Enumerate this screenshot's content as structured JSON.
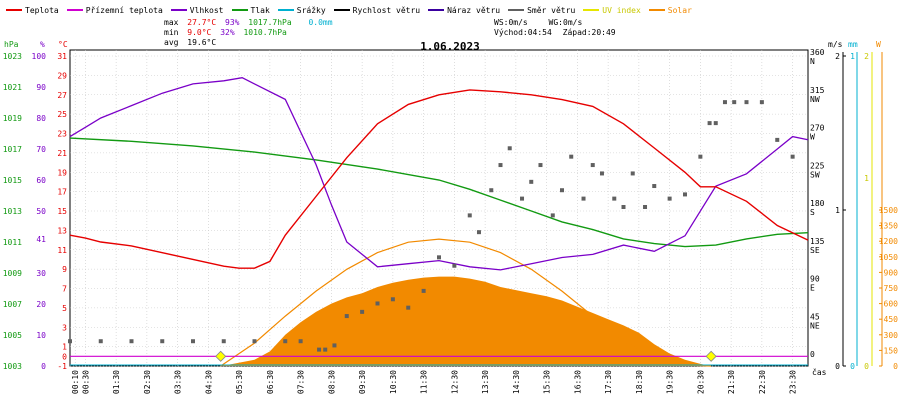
{
  "legend": [
    {
      "label": "Teplota",
      "color": "#e60000"
    },
    {
      "label": "Přízemní teplota",
      "color": "#d000d0"
    },
    {
      "label": "Vlhkost",
      "color": "#7a00c8"
    },
    {
      "label": "Tlak",
      "color": "#129a12"
    },
    {
      "label": "Srážky",
      "color": "#00b0d0"
    },
    {
      "label": "Rychlost větru",
      "color": "#000000"
    },
    {
      "label": "Náraz větru",
      "color": "#3a00a0"
    },
    {
      "label": "Směr větru",
      "color": "#606060"
    },
    {
      "label": "UV index",
      "color": "#e6e600"
    },
    {
      "label": "Solar",
      "color": "#f28a00"
    }
  ],
  "stats": {
    "max_label": "max",
    "max_temp": "27.7°C",
    "max_hum": "93%",
    "max_press": "1017.7hPa",
    "max_rain": "0.0mm",
    "min_label": "min",
    "min_temp": "9.0°C",
    "min_hum": "32%",
    "min_press": "1010.7hPa",
    "avg_label": "avg",
    "avg_temp": "19.6°C"
  },
  "sun": {
    "ws": "WS:0m/s",
    "wg": "WG:0m/s",
    "sunrise": "Východ:04:54",
    "sunset": "Západ:20:49"
  },
  "title": "1.06.2023",
  "axis_titles": {
    "hpa": "hPa",
    "pct": "%",
    "degc": "°C",
    "ms": "m/s",
    "mm": "mm",
    "w": "W",
    "x": "čas"
  },
  "colors": {
    "temp": "#e60000",
    "hum": "#7a00c8",
    "press": "#129a12",
    "dir": "#606060",
    "solar": "#f28a00",
    "ground": "#d000d0",
    "rain": "#00b0d0",
    "uv": "#e6e600",
    "grid": "#c8c8c8"
  },
  "chart_data": {
    "type": "line",
    "title": "1.06.2023",
    "x_unit": "time of day (hours)",
    "x_ticks": [
      "00:10",
      "00:30",
      "01:30",
      "02:30",
      "03:30",
      "04:30",
      "05:30",
      "06:30",
      "07:30",
      "08:30",
      "09:30",
      "10:30",
      "11:30",
      "12:30",
      "13:30",
      "14:30",
      "15:30",
      "16:30",
      "17:30",
      "18:30",
      "19:30",
      "20:30",
      "21:30",
      "22:30",
      "23:30"
    ],
    "x_tick_hours": [
      0.17,
      0.5,
      1.5,
      2.5,
      3.5,
      4.5,
      5.5,
      6.5,
      7.5,
      8.5,
      9.5,
      10.5,
      11.5,
      12.5,
      13.5,
      14.5,
      15.5,
      16.5,
      17.5,
      18.5,
      19.5,
      20.5,
      21.5,
      22.5,
      23.5
    ],
    "axes": {
      "pressure_hPa": {
        "ticks": [
          1003,
          1005,
          1007,
          1009,
          1011,
          1013,
          1015,
          1017,
          1019,
          1021,
          1023
        ]
      },
      "humidity_pct": {
        "ticks": [
          0,
          10,
          20,
          30,
          41,
          50,
          60,
          70,
          80,
          90,
          100
        ]
      },
      "temperature_C": {
        "ticks": [
          -1,
          1,
          3,
          5,
          7,
          9,
          11,
          13,
          15,
          17,
          19,
          21,
          23,
          25,
          27,
          29,
          31
        ],
        "extra_labels": [
          "0"
        ]
      },
      "wind_dir_deg": {
        "ticks": [
          "0",
          "45 NE",
          "90 E",
          "135 SE",
          "180 S",
          "225 SW",
          "270 W",
          "315 NW",
          "360 N"
        ]
      },
      "wind_speed_ms": {
        "ticks": [
          "0",
          "1",
          "2"
        ]
      },
      "rain_mm": {
        "ticks": [
          "0",
          "1"
        ]
      },
      "uv": {
        "ticks": [
          "0",
          "1",
          "2"
        ]
      },
      "solar_W": {
        "ticks": [
          0,
          150,
          300,
          450,
          600,
          750,
          900,
          1050,
          1200,
          1350,
          1500
        ]
      }
    },
    "series": [
      {
        "name": "Teplota",
        "unit": "°C",
        "x": [
          0,
          0.5,
          1,
          2,
          3,
          4,
          5,
          5.5,
          6,
          6.5,
          7,
          8,
          9,
          10,
          11,
          12,
          13,
          14,
          15,
          16,
          17,
          18,
          19,
          20,
          20.5,
          21,
          22,
          23,
          24
        ],
        "y": [
          12.5,
          12.2,
          11.8,
          11.4,
          10.7,
          10.0,
          9.3,
          9.1,
          9.1,
          9.8,
          12.5,
          16.5,
          20.5,
          24.0,
          26.0,
          27.0,
          27.5,
          27.3,
          27.0,
          26.5,
          25.8,
          24.0,
          21.5,
          19.0,
          17.5,
          17.5,
          16.0,
          13.5,
          12.0
        ]
      },
      {
        "name": "Vlhkost",
        "unit": "%",
        "x": [
          0,
          0.5,
          1,
          2,
          3,
          4,
          5,
          5.6,
          6,
          7,
          8,
          8.5,
          9,
          10,
          11,
          12,
          13,
          14,
          15,
          16,
          17,
          18,
          19,
          20,
          21,
          22,
          23,
          23.5,
          24
        ],
        "y": [
          74,
          77,
          80,
          84,
          88,
          91,
          92,
          93,
          91,
          86,
          65,
          52,
          40,
          32,
          33,
          34,
          32,
          31,
          33,
          35,
          36,
          39,
          37,
          42,
          58,
          62,
          70,
          74,
          73
        ]
      },
      {
        "name": "Tlak",
        "unit": "hPa",
        "x": [
          0,
          2,
          4,
          6,
          8,
          10,
          12,
          13,
          14,
          15,
          16,
          17,
          18,
          19,
          20,
          21,
          22,
          23,
          24
        ],
        "y": [
          1017.7,
          1017.5,
          1017.2,
          1016.8,
          1016.3,
          1015.7,
          1015.0,
          1014.4,
          1013.7,
          1013.0,
          1012.3,
          1011.8,
          1011.2,
          1010.9,
          1010.7,
          1010.8,
          1011.2,
          1011.5,
          1011.6
        ]
      },
      {
        "name": "Směr větru",
        "unit": "°",
        "type": "scatter",
        "x": [
          0,
          1,
          2,
          3,
          4,
          5,
          6,
          7,
          7.5,
          8.1,
          8.3,
          8.6,
          9,
          9.5,
          10,
          10.5,
          11,
          11.5,
          12,
          12.5,
          13,
          13.3,
          13.7,
          14,
          14.3,
          14.7,
          15,
          15.3,
          15.7,
          16,
          16.3,
          16.7,
          17,
          17.3,
          17.7,
          18,
          18.3,
          18.7,
          19,
          19.5,
          20,
          20.5,
          20.8,
          21,
          21.3,
          21.6,
          22,
          22.5,
          23,
          23.5
        ],
        "y": [
          20,
          20,
          20,
          20,
          20,
          20,
          20,
          20,
          20,
          10,
          10,
          15,
          50,
          55,
          65,
          70,
          60,
          80,
          120,
          110,
          170,
          150,
          200,
          230,
          250,
          190,
          210,
          230,
          170,
          200,
          240,
          190,
          230,
          220,
          190,
          180,
          220,
          180,
          205,
          190,
          195,
          240,
          280,
          280,
          305,
          305,
          305,
          305,
          260,
          240
        ]
      },
      {
        "name": "Solar",
        "unit": "W/m²",
        "type": "area",
        "x": [
          0,
          4.9,
          5.3,
          6,
          6.5,
          7,
          7.5,
          8,
          8.5,
          9,
          9.5,
          10,
          10.5,
          11,
          11.5,
          12,
          12.5,
          13,
          13.5,
          14,
          14.5,
          15,
          15.5,
          16,
          16.5,
          17,
          17.5,
          18,
          18.5,
          19,
          19.5,
          20,
          20.5,
          20.85,
          24
        ],
        "y": [
          0,
          0,
          20,
          60,
          140,
          300,
          420,
          520,
          600,
          660,
          700,
          760,
          800,
          830,
          850,
          860,
          860,
          840,
          810,
          760,
          730,
          700,
          670,
          630,
          570,
          510,
          450,
          390,
          320,
          210,
          120,
          60,
          20,
          0,
          0
        ]
      },
      {
        "name": "Solar (max theoretical)",
        "unit": "W/m²",
        "type": "line",
        "x": [
          4.9,
          6,
          7,
          8,
          9,
          10,
          11,
          12,
          13,
          14,
          15,
          16,
          17,
          18,
          19,
          20,
          20.85
        ],
        "y": [
          0,
          220,
          480,
          720,
          930,
          1090,
          1190,
          1220,
          1190,
          1090,
          930,
          720,
          480,
          240,
          80,
          10,
          0
        ]
      },
      {
        "name": "Přízemní teplota",
        "unit": "°C",
        "x": [
          0,
          24
        ],
        "y": [
          0,
          0
        ]
      },
      {
        "name": "Srážky",
        "unit": "mm",
        "x": [
          0,
          24
        ],
        "y": [
          0,
          0
        ]
      },
      {
        "name": "UV index",
        "unit": "",
        "x": [
          0,
          24
        ],
        "y": [
          0,
          0
        ]
      },
      {
        "name": "Rychlost větru",
        "unit": "m/s",
        "x": [
          0,
          24
        ],
        "y": [
          0,
          0
        ]
      },
      {
        "name": "Náraz větru",
        "unit": "m/s",
        "x": [
          0,
          24
        ],
        "y": [
          0,
          0
        ]
      }
    ]
  }
}
